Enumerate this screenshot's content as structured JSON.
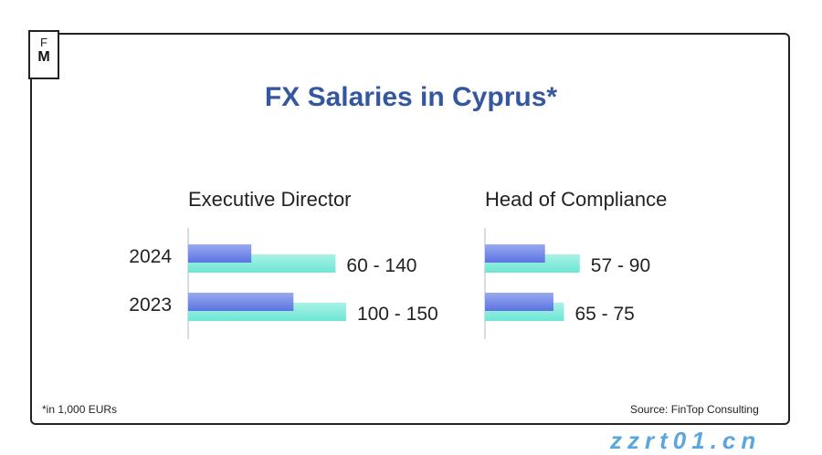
{
  "logo": {
    "top": "F",
    "bottom": "M"
  },
  "title": "FX Salaries in Cyprus*",
  "footnote": "*in 1,000 EURs",
  "source": "Source: FinTop Consulting",
  "watermark": "zzrt01.cn",
  "colors": {
    "low_bar": "#5b73e0",
    "high_bar": "#6ee6d4",
    "title": "#3557a0"
  },
  "chart_data": [
    {
      "type": "bar",
      "orientation": "horizontal",
      "title": "Executive Director",
      "categories": [
        "2024",
        "2023"
      ],
      "series": [
        {
          "values": [
            60,
            100
          ]
        },
        {
          "values": [
            140,
            150
          ]
        }
      ],
      "data_labels": [
        "60 - 140",
        "100 - 150"
      ]
    },
    {
      "type": "bar",
      "orientation": "horizontal",
      "title": "Head of Compliance",
      "categories": [
        "2024",
        "2023"
      ],
      "series": [
        {
          "values": [
            57,
            65
          ]
        },
        {
          "values": [
            90,
            75
          ]
        }
      ],
      "data_labels": [
        "57 - 90",
        "65 - 75"
      ]
    }
  ]
}
